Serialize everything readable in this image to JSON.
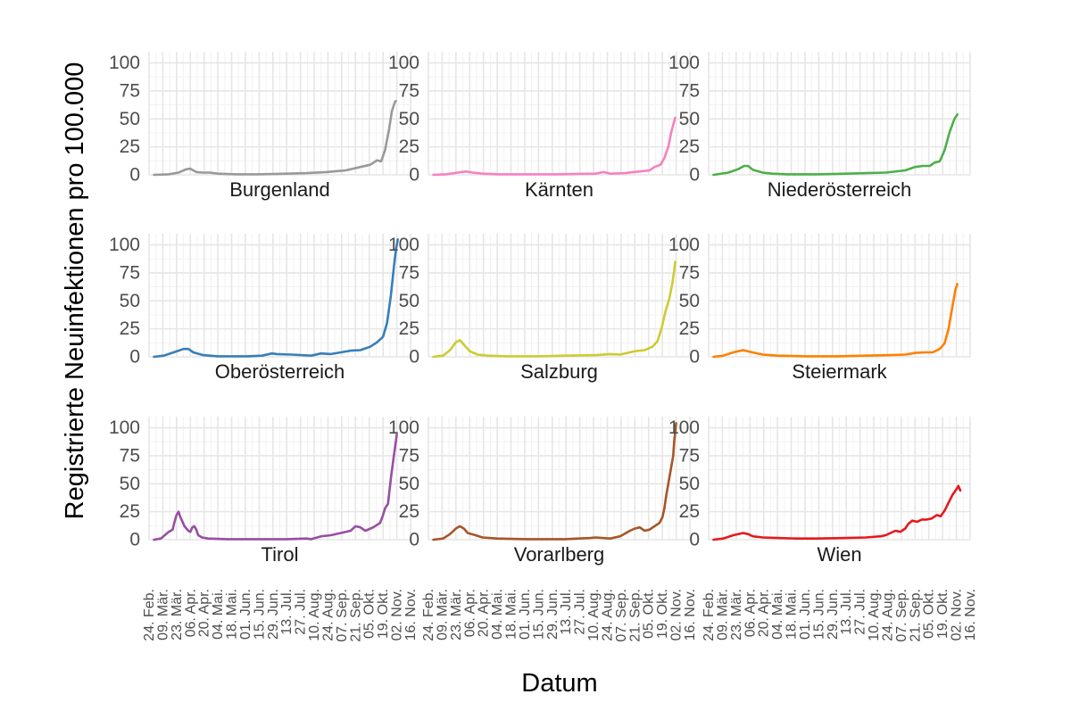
{
  "chart_data": {
    "type": "line",
    "xlabel": "Datum",
    "ylabel": "Registrierte Neuinfektionen pro 100.000",
    "ylim": [
      0,
      110
    ],
    "y_ticks": [
      0,
      25,
      50,
      75,
      100
    ],
    "x_ticks": [
      {
        "label": "24. Feb.",
        "day": 0
      },
      {
        "label": "09. Mär.",
        "day": 14
      },
      {
        "label": "23. Mär.",
        "day": 28
      },
      {
        "label": "06. Apr.",
        "day": 42
      },
      {
        "label": "20. Apr.",
        "day": 56
      },
      {
        "label": "04. Mai.",
        "day": 70
      },
      {
        "label": "18. Mai.",
        "day": 84
      },
      {
        "label": "01. Jun.",
        "day": 98
      },
      {
        "label": "15. Jun.",
        "day": 112
      },
      {
        "label": "29. Jun.",
        "day": 126
      },
      {
        "label": "13. Jul.",
        "day": 140
      },
      {
        "label": "27. Jul.",
        "day": 154
      },
      {
        "label": "10. Aug.",
        "day": 168
      },
      {
        "label": "24. Aug.",
        "day": 182
      },
      {
        "label": "07. Sep.",
        "day": 196
      },
      {
        "label": "21. Sep.",
        "day": 210
      },
      {
        "label": "05. Okt.",
        "day": 224
      },
      {
        "label": "19. Okt.",
        "day": 238
      },
      {
        "label": "02. Nov.",
        "day": 252
      },
      {
        "label": "16. Nov.",
        "day": 266
      }
    ],
    "x_range_days": [
      0,
      266
    ],
    "panels": [
      {
        "name": "Burgenland",
        "color": "#999999",
        "points": [
          [
            5,
            0
          ],
          [
            20,
            0.5
          ],
          [
            30,
            2
          ],
          [
            38,
            5
          ],
          [
            42,
            5.5
          ],
          [
            48,
            2.5
          ],
          [
            55,
            2
          ],
          [
            62,
            2
          ],
          [
            70,
            1
          ],
          [
            90,
            0.5
          ],
          [
            110,
            0.5
          ],
          [
            140,
            1
          ],
          [
            160,
            1.5
          ],
          [
            180,
            2.5
          ],
          [
            200,
            4
          ],
          [
            215,
            7
          ],
          [
            225,
            9
          ],
          [
            232,
            13
          ],
          [
            236,
            12
          ],
          [
            240,
            22
          ],
          [
            244,
            40
          ],
          [
            247,
            57
          ],
          [
            250,
            65
          ],
          [
            251,
            66
          ]
        ]
      },
      {
        "name": "Kärnten",
        "color": "#F781BF",
        "points": [
          [
            5,
            0
          ],
          [
            18,
            0.5
          ],
          [
            30,
            2
          ],
          [
            38,
            3
          ],
          [
            45,
            2
          ],
          [
            55,
            1
          ],
          [
            70,
            0.5
          ],
          [
            100,
            0.5
          ],
          [
            130,
            0.5
          ],
          [
            170,
            1
          ],
          [
            178,
            2.5
          ],
          [
            185,
            1
          ],
          [
            200,
            1.5
          ],
          [
            215,
            3
          ],
          [
            225,
            4
          ],
          [
            230,
            7
          ],
          [
            236,
            9
          ],
          [
            240,
            15
          ],
          [
            244,
            25
          ],
          [
            247,
            38
          ],
          [
            250,
            48
          ],
          [
            251,
            51
          ]
        ]
      },
      {
        "name": "Niederösterreich",
        "color": "#4DAF4A",
        "points": [
          [
            5,
            0
          ],
          [
            20,
            2
          ],
          [
            30,
            5
          ],
          [
            36,
            8
          ],
          [
            40,
            8
          ],
          [
            45,
            4.5
          ],
          [
            55,
            2
          ],
          [
            65,
            1
          ],
          [
            80,
            0.5
          ],
          [
            110,
            0.5
          ],
          [
            140,
            1
          ],
          [
            160,
            1.5
          ],
          [
            180,
            2
          ],
          [
            200,
            4
          ],
          [
            210,
            7
          ],
          [
            218,
            8
          ],
          [
            225,
            8
          ],
          [
            230,
            11
          ],
          [
            235,
            12
          ],
          [
            240,
            22
          ],
          [
            245,
            38
          ],
          [
            250,
            50
          ],
          [
            253,
            54
          ]
        ]
      },
      {
        "name": "Oberösterreich",
        "color": "#377EB8",
        "points": [
          [
            5,
            0
          ],
          [
            15,
            1
          ],
          [
            25,
            4
          ],
          [
            35,
            7
          ],
          [
            40,
            7
          ],
          [
            45,
            4
          ],
          [
            55,
            1.5
          ],
          [
            70,
            0.5
          ],
          [
            100,
            0.5
          ],
          [
            115,
            1
          ],
          [
            125,
            3
          ],
          [
            130,
            2.5
          ],
          [
            145,
            2
          ],
          [
            165,
            1
          ],
          [
            175,
            3
          ],
          [
            185,
            2.5
          ],
          [
            195,
            4
          ],
          [
            205,
            5.5
          ],
          [
            215,
            6
          ],
          [
            225,
            9
          ],
          [
            232,
            13
          ],
          [
            238,
            18
          ],
          [
            242,
            30
          ],
          [
            246,
            55
          ],
          [
            249,
            80
          ],
          [
            251,
            95
          ],
          [
            253,
            105
          ]
        ]
      },
      {
        "name": "Salzburg",
        "color": "#CCCC33",
        "points": [
          [
            5,
            0
          ],
          [
            15,
            1
          ],
          [
            22,
            6
          ],
          [
            28,
            13
          ],
          [
            32,
            15
          ],
          [
            36,
            11
          ],
          [
            42,
            5
          ],
          [
            50,
            2
          ],
          [
            60,
            1
          ],
          [
            80,
            0.5
          ],
          [
            110,
            0.5
          ],
          [
            140,
            1
          ],
          [
            170,
            1.5
          ],
          [
            185,
            2.5
          ],
          [
            195,
            2
          ],
          [
            210,
            5
          ],
          [
            220,
            6
          ],
          [
            228,
            9
          ],
          [
            233,
            14
          ],
          [
            237,
            25
          ],
          [
            241,
            40
          ],
          [
            245,
            52
          ],
          [
            248,
            65
          ],
          [
            250,
            77
          ],
          [
            251,
            85
          ]
        ]
      },
      {
        "name": "Steiermark",
        "color": "#FF7F00",
        "points": [
          [
            5,
            0
          ],
          [
            15,
            1
          ],
          [
            25,
            4
          ],
          [
            35,
            6
          ],
          [
            42,
            4.5
          ],
          [
            55,
            2
          ],
          [
            70,
            1
          ],
          [
            100,
            0.5
          ],
          [
            130,
            0.5
          ],
          [
            160,
            1
          ],
          [
            185,
            1.5
          ],
          [
            200,
            2
          ],
          [
            210,
            3.5
          ],
          [
            220,
            4
          ],
          [
            228,
            4
          ],
          [
            235,
            7
          ],
          [
            240,
            12
          ],
          [
            244,
            25
          ],
          [
            248,
            45
          ],
          [
            251,
            60
          ],
          [
            253,
            65
          ]
        ]
      },
      {
        "name": "Tirol",
        "color": "#984EA3",
        "points": [
          [
            5,
            0
          ],
          [
            12,
            1
          ],
          [
            16,
            4
          ],
          [
            20,
            7
          ],
          [
            24,
            9
          ],
          [
            26,
            16
          ],
          [
            28,
            22
          ],
          [
            30,
            25
          ],
          [
            32,
            20
          ],
          [
            34,
            16
          ],
          [
            36,
            12
          ],
          [
            38,
            10
          ],
          [
            40,
            8
          ],
          [
            42,
            7
          ],
          [
            44,
            11
          ],
          [
            46,
            12
          ],
          [
            48,
            9
          ],
          [
            50,
            4
          ],
          [
            54,
            2
          ],
          [
            60,
            1
          ],
          [
            80,
            0.5
          ],
          [
            110,
            0.5
          ],
          [
            140,
            0.5
          ],
          [
            160,
            1
          ],
          [
            165,
            0.5
          ],
          [
            175,
            3
          ],
          [
            185,
            4
          ],
          [
            195,
            6
          ],
          [
            205,
            8
          ],
          [
            210,
            12
          ],
          [
            215,
            11
          ],
          [
            220,
            8
          ],
          [
            228,
            11
          ],
          [
            235,
            15
          ],
          [
            238,
            22
          ],
          [
            240,
            28
          ],
          [
            243,
            32
          ],
          [
            246,
            55
          ],
          [
            249,
            75
          ],
          [
            252,
            94
          ]
        ]
      },
      {
        "name": "Vorarlberg",
        "color": "#A65628",
        "points": [
          [
            5,
            0
          ],
          [
            15,
            1
          ],
          [
            22,
            5
          ],
          [
            28,
            10
          ],
          [
            32,
            12
          ],
          [
            36,
            10
          ],
          [
            40,
            6
          ],
          [
            48,
            4
          ],
          [
            55,
            2
          ],
          [
            70,
            1
          ],
          [
            100,
            0.5
          ],
          [
            140,
            0.5
          ],
          [
            165,
            1.5
          ],
          [
            170,
            2
          ],
          [
            185,
            1
          ],
          [
            195,
            3
          ],
          [
            205,
            8
          ],
          [
            210,
            10
          ],
          [
            215,
            11
          ],
          [
            220,
            8
          ],
          [
            225,
            9
          ],
          [
            230,
            12
          ],
          [
            235,
            15
          ],
          [
            238,
            20
          ],
          [
            240,
            28
          ],
          [
            242,
            40
          ],
          [
            245,
            55
          ],
          [
            247,
            65
          ],
          [
            249,
            75
          ],
          [
            250,
            88
          ],
          [
            251,
            96
          ],
          [
            252,
            104
          ]
        ]
      },
      {
        "name": "Wien",
        "color": "#E41A1C",
        "points": [
          [
            5,
            0
          ],
          [
            15,
            1
          ],
          [
            25,
            4
          ],
          [
            35,
            6
          ],
          [
            40,
            5
          ],
          [
            45,
            3
          ],
          [
            55,
            2
          ],
          [
            70,
            1.5
          ],
          [
            90,
            1
          ],
          [
            110,
            1
          ],
          [
            140,
            1.5
          ],
          [
            160,
            2
          ],
          [
            175,
            3
          ],
          [
            180,
            4
          ],
          [
            185,
            6
          ],
          [
            190,
            8
          ],
          [
            195,
            7
          ],
          [
            200,
            10
          ],
          [
            203,
            14
          ],
          [
            207,
            17
          ],
          [
            212,
            16
          ],
          [
            217,
            18
          ],
          [
            222,
            18
          ],
          [
            227,
            19
          ],
          [
            232,
            22
          ],
          [
            236,
            21
          ],
          [
            240,
            26
          ],
          [
            244,
            33
          ],
          [
            248,
            40
          ],
          [
            252,
            45
          ],
          [
            254,
            48
          ],
          [
            256,
            44
          ]
        ]
      }
    ]
  }
}
